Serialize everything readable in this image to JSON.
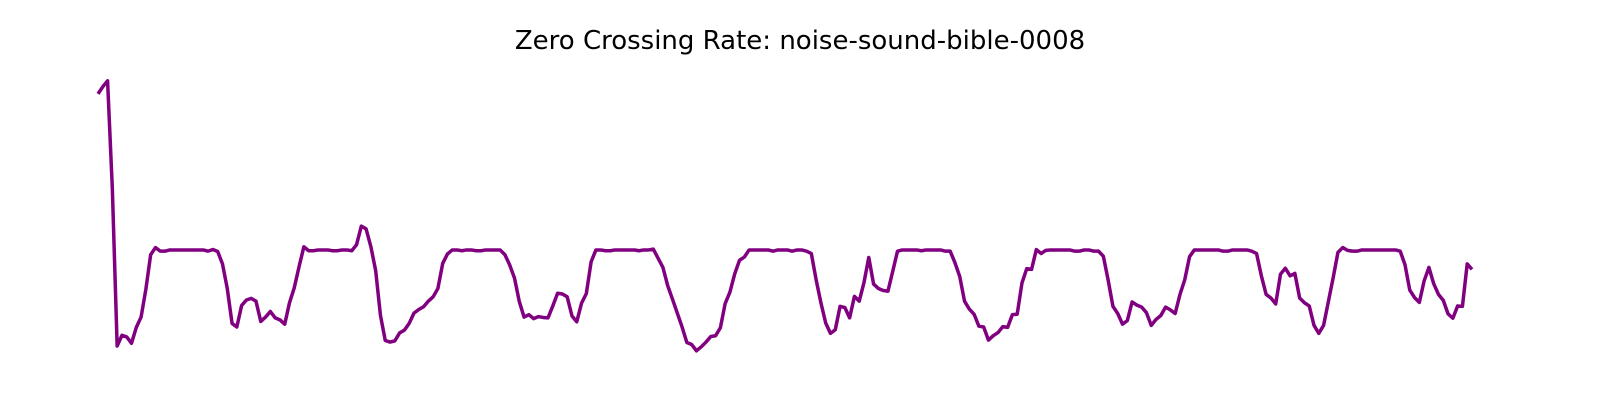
{
  "chart_data": {
    "type": "line",
    "title": "Zero Crossing Rate: noise-sound-bible-0008",
    "xlabel": "",
    "ylabel": "",
    "axes_visible": false,
    "grid": false,
    "series": [
      {
        "color": "#800080",
        "values": [
          0.72,
          0.738,
          0.753,
          0.48,
          0.085,
          0.112,
          0.108,
          0.092,
          0.132,
          0.158,
          0.228,
          0.315,
          0.333,
          0.324,
          0.324,
          0.327,
          0.327,
          0.327,
          0.327,
          0.327,
          0.327,
          0.327,
          0.327,
          0.324,
          0.328,
          0.323,
          0.292,
          0.23,
          0.142,
          0.133,
          0.187,
          0.201,
          0.205,
          0.198,
          0.147,
          0.158,
          0.172,
          0.156,
          0.151,
          0.14,
          0.194,
          0.232,
          0.285,
          0.335,
          0.325,
          0.325,
          0.327,
          0.327,
          0.327,
          0.325,
          0.325,
          0.327,
          0.327,
          0.325,
          0.34,
          0.387,
          0.38,
          0.335,
          0.275,
          0.162,
          0.099,
          0.095,
          0.098,
          0.118,
          0.125,
          0.142,
          0.168,
          0.177,
          0.184,
          0.198,
          0.209,
          0.23,
          0.293,
          0.317,
          0.327,
          0.327,
          0.325,
          0.327,
          0.327,
          0.325,
          0.325,
          0.327,
          0.327,
          0.327,
          0.327,
          0.315,
          0.289,
          0.256,
          0.197,
          0.158,
          0.164,
          0.154,
          0.159,
          0.157,
          0.156,
          0.186,
          0.218,
          0.216,
          0.209,
          0.161,
          0.146,
          0.193,
          0.217,
          0.297,
          0.327,
          0.327,
          0.325,
          0.325,
          0.327,
          0.327,
          0.327,
          0.327,
          0.327,
          0.325,
          0.327,
          0.327,
          0.329,
          0.306,
          0.283,
          0.237,
          0.203,
          0.168,
          0.133,
          0.094,
          0.089,
          0.073,
          0.083,
          0.095,
          0.109,
          0.111,
          0.131,
          0.192,
          0.221,
          0.267,
          0.301,
          0.309,
          0.327,
          0.327,
          0.327,
          0.327,
          0.327,
          0.324,
          0.327,
          0.327,
          0.327,
          0.324,
          0.327,
          0.327,
          0.324,
          0.318,
          0.252,
          0.194,
          0.143,
          0.117,
          0.126,
          0.185,
          0.182,
          0.156,
          0.21,
          0.198,
          0.245,
          0.308,
          0.241,
          0.23,
          0.225,
          0.223,
          0.273,
          0.324,
          0.327,
          0.327,
          0.327,
          0.327,
          0.325,
          0.327,
          0.327,
          0.327,
          0.327,
          0.324,
          0.324,
          0.295,
          0.26,
          0.198,
          0.178,
          0.165,
          0.135,
          0.133,
          0.1,
          0.111,
          0.119,
          0.134,
          0.132,
          0.164,
          0.165,
          0.244,
          0.28,
          0.278,
          0.328,
          0.318,
          0.326,
          0.327,
          0.327,
          0.327,
          0.327,
          0.327,
          0.324,
          0.324,
          0.327,
          0.327,
          0.324,
          0.324,
          0.311,
          0.251,
          0.185,
          0.167,
          0.14,
          0.149,
          0.196,
          0.188,
          0.183,
          0.169,
          0.137,
          0.152,
          0.162,
          0.183,
          0.176,
          0.167,
          0.215,
          0.252,
          0.31,
          0.327,
          0.327,
          0.327,
          0.327,
          0.327,
          0.327,
          0.324,
          0.324,
          0.327,
          0.327,
          0.327,
          0.327,
          0.324,
          0.318,
          0.262,
          0.215,
          0.206,
          0.191,
          0.266,
          0.281,
          0.262,
          0.268,
          0.206,
          0.194,
          0.186,
          0.137,
          0.117,
          0.137,
          0.197,
          0.257,
          0.321,
          0.333,
          0.326,
          0.324,
          0.324,
          0.327,
          0.327,
          0.327,
          0.327,
          0.327,
          0.327,
          0.327,
          0.327,
          0.324,
          0.29,
          0.226,
          0.207,
          0.195,
          0.249,
          0.283,
          0.242,
          0.215,
          0.2,
          0.166,
          0.155,
          0.186,
          0.185,
          0.292,
          0.278
        ]
      }
    ]
  }
}
